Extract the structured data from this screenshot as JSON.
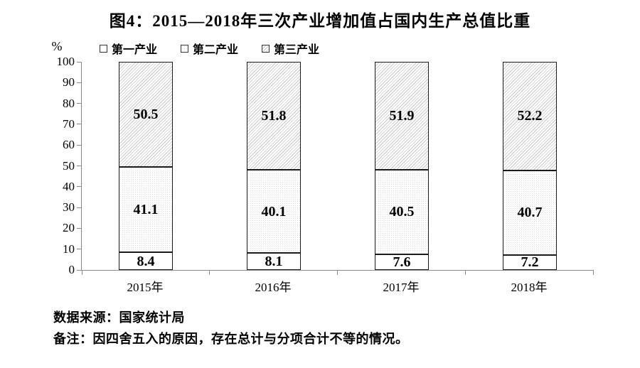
{
  "title": "图4：2015—2018年三次产业增加值占国内生产总值比重",
  "y_axis": {
    "unit": "%",
    "ticks": [
      100,
      90,
      80,
      70,
      60,
      50,
      40,
      30,
      20,
      10,
      0
    ]
  },
  "legend": [
    {
      "label": "第一产业",
      "pattern": "plain"
    },
    {
      "label": "第二产业",
      "pattern": "dots"
    },
    {
      "label": "第三产业",
      "pattern": "hatch"
    }
  ],
  "chart_data": {
    "type": "bar",
    "stacked": true,
    "orientation": "vertical",
    "title": "图4：2015—2018年三次产业增加值占国内生产总值比重",
    "categories": [
      "2015年",
      "2016年",
      "2017年",
      "2018年"
    ],
    "series": [
      {
        "name": "第一产业",
        "key": "primary-industry",
        "pattern": "plain",
        "values": [
          8.4,
          8.1,
          7.6,
          7.2
        ]
      },
      {
        "name": "第二产业",
        "key": "secondary-industry",
        "pattern": "dots",
        "values": [
          41.1,
          40.1,
          40.5,
          40.7
        ]
      },
      {
        "name": "第三产业",
        "key": "tertiary-industry",
        "pattern": "hatch",
        "values": [
          50.5,
          51.8,
          51.9,
          52.2
        ]
      }
    ],
    "ylim": [
      0,
      100
    ],
    "ylabel": "%",
    "grid": false,
    "legend_position": "top",
    "colors": {
      "bar_border": "#1a1a1a",
      "axis": "#8a8a8a",
      "hatch_line": "#c8c8c8",
      "dot": "#d9d9d9",
      "text": "#000000"
    }
  },
  "notes": {
    "source": "数据来源：国家统计局",
    "remark": "备注：因四舍五入的原因，存在总计与分项合计不等的情况。"
  }
}
